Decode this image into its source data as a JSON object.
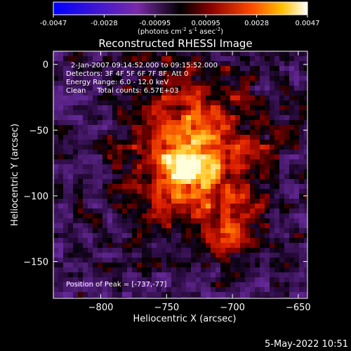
{
  "colorbar": {
    "ticks": [
      "-0.0047",
      "-0.0028",
      "-0.00095",
      "0.00095",
      "0.0028",
      "0.0047"
    ],
    "units_main": "(photons cm",
    "units_sup1": "-2",
    "units_mid": " s",
    "units_sup2": "-1",
    "units_mid2": " asec",
    "units_sup3": "-2",
    "units_end": ")"
  },
  "title": "Reconstructed RHESSI Image",
  "info": {
    "line1": "2-Jan-2007 09:14:52.000 to 09:15:52.000",
    "line2": "Detectors: 3F 4F 5F 6F 7F 8F, Att 0",
    "line3": "Energy Range: 6.0 - 12.0 keV",
    "line4": "Clean     Total counts: 6.57E+03",
    "peak": "Position of Peak = [-737,-77]"
  },
  "footer_date": "5-May-2022 10:51",
  "chart_data": {
    "type": "heatmap",
    "title": "Reconstructed RHESSI Image",
    "xlabel": "Heliocentric X (arcsec)",
    "ylabel": "Heliocentric Y (arcsec)",
    "xlim": [
      -836,
      -643
    ],
    "ylim": [
      -178,
      10
    ],
    "xticks": [
      -800,
      -750,
      -700,
      -650
    ],
    "yticks": [
      0,
      -50,
      -100,
      -150
    ],
    "colorbar_range": [
      -0.0047,
      0.0047
    ],
    "colorbar_ticks": [
      -0.0047,
      -0.0028,
      -0.00095,
      0.00095,
      0.0028,
      0.0047
    ],
    "colorbar_unit": "photons cm^-2 s^-1 asec^-2",
    "peak_position": [
      -737,
      -77
    ],
    "energy_range_keV": [
      6.0,
      12.0
    ],
    "total_counts": 6570
  }
}
